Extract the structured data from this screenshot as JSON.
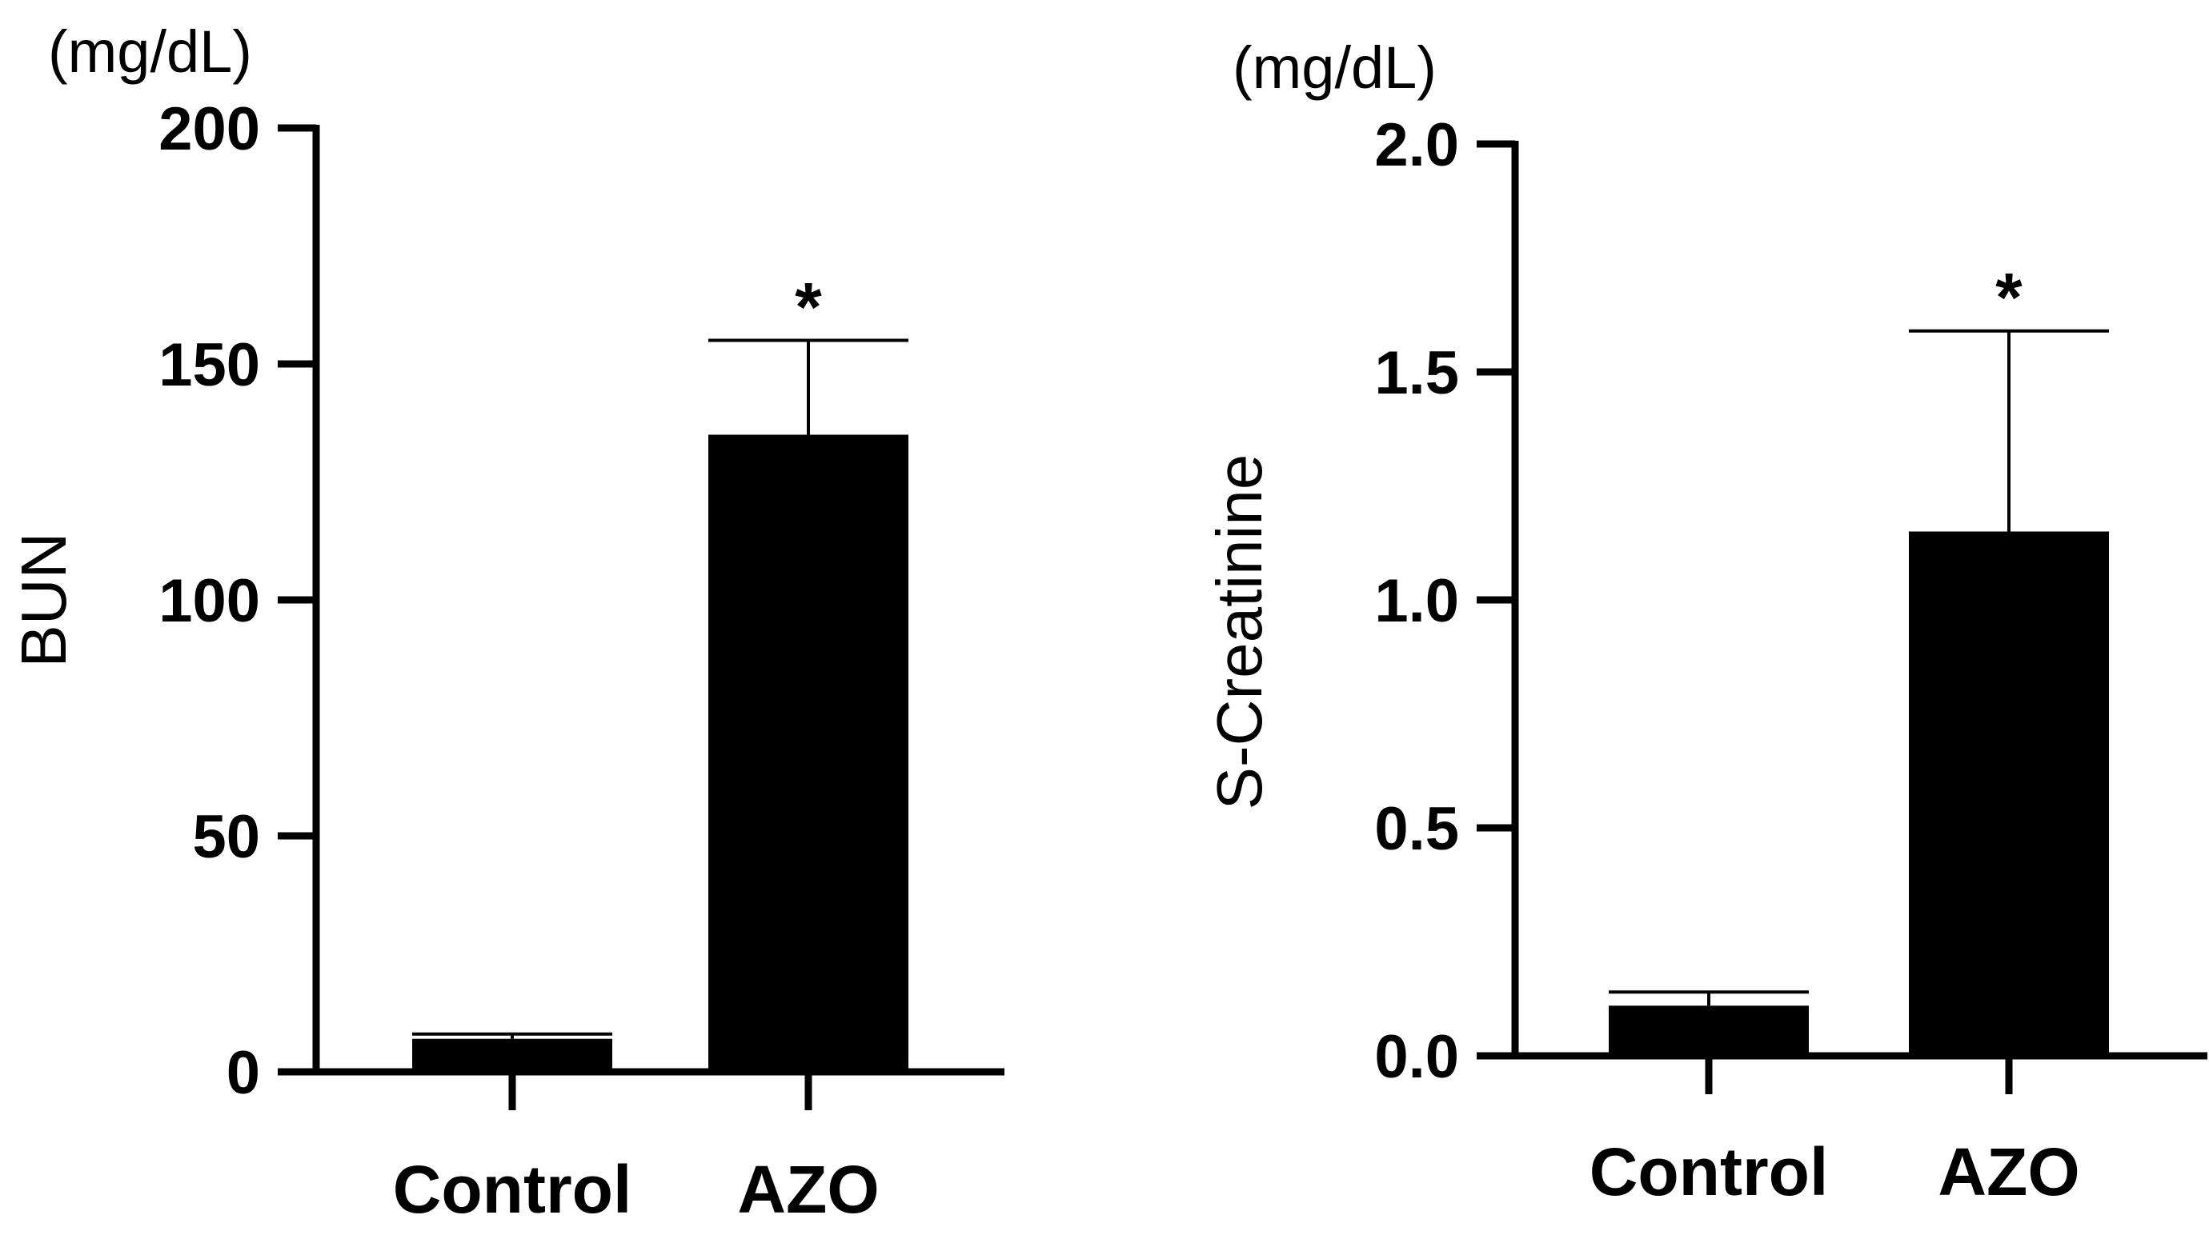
{
  "chart_data": [
    {
      "type": "bar",
      "categories": [
        "Control",
        "AZO"
      ],
      "values": [
        7,
        135
      ],
      "errors": [
        1,
        20
      ],
      "significance": [
        "",
        "*"
      ],
      "ylabel": "BUN",
      "unit": "(mg/dL)",
      "ylim": [
        0,
        200
      ],
      "yticks": [
        0,
        50,
        100,
        150,
        200
      ],
      "tick_labels": [
        "0",
        "50",
        "100",
        "150",
        "200"
      ],
      "color": "#000000"
    },
    {
      "type": "bar",
      "categories": [
        "Control",
        "AZO"
      ],
      "values": [
        0.11,
        1.15
      ],
      "errors": [
        0.03,
        0.44
      ],
      "significance": [
        "",
        "*"
      ],
      "ylabel": "S-Creatinine",
      "unit": "(mg/dL)",
      "ylim": [
        0,
        2.0
      ],
      "yticks": [
        0,
        0.5,
        1.0,
        1.5,
        2.0
      ],
      "tick_labels": [
        "0.0",
        "0.5",
        "1.0",
        "1.5",
        "2.0"
      ],
      "color": "#000000"
    }
  ]
}
